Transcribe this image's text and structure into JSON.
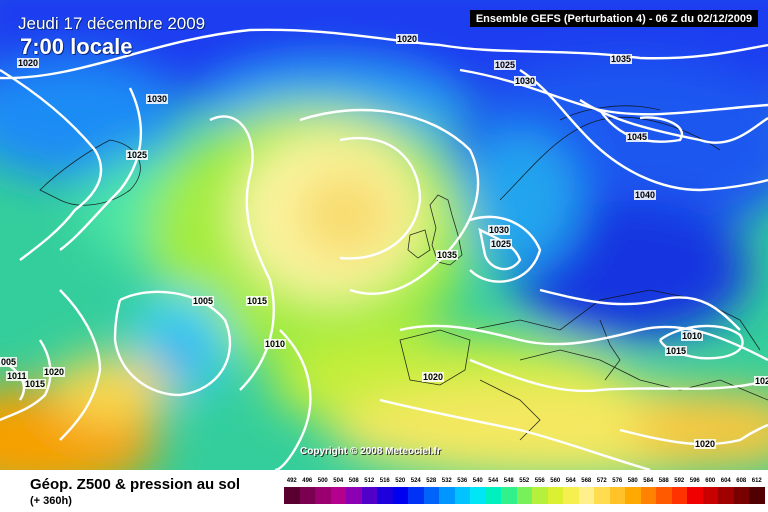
{
  "header": {
    "date": "Jeudi 17 décembre 2009",
    "time": "7:00 locale",
    "model": "Ensemble GEFS (Perturbation 4) - 06 Z du 02/12/2009"
  },
  "copyright": "Copyright © 2008 Meteociel.fr",
  "footer": {
    "title": "Géop. Z500 & pression au sol",
    "subtitle": "(+ 360h)"
  },
  "isobar_labels": [
    "1020",
    "1020",
    "1030",
    "1025",
    "1025",
    "1030",
    "1035",
    "1045",
    "1040",
    "1030",
    "1025",
    "1035",
    "1005",
    "1015",
    "1010",
    "005",
    "1011",
    "1015",
    "1020",
    "1020",
    "1010",
    "1015",
    "1020",
    "102"
  ],
  "scale": {
    "values": [
      "492",
      "496",
      "500",
      "504",
      "508",
      "512",
      "516",
      "520",
      "524",
      "528",
      "532",
      "536",
      "540",
      "544",
      "548",
      "552",
      "556",
      "560",
      "564",
      "568",
      "572",
      "576",
      "580",
      "584",
      "588",
      "592",
      "596",
      "600",
      "604",
      "608",
      "612"
    ],
    "colors": [
      "#5a0030",
      "#7a0050",
      "#9a0070",
      "#b4008c",
      "#8c00b4",
      "#5000c8",
      "#1e00dc",
      "#0000f0",
      "#0032f5",
      "#0064fa",
      "#0096ff",
      "#00c3ff",
      "#00e6f5",
      "#00f0be",
      "#32f08c",
      "#78f05a",
      "#b4f03c",
      "#dcf032",
      "#f5f050",
      "#fff08c",
      "#ffdc50",
      "#ffc328",
      "#ffaa00",
      "#ff8200",
      "#ff5a00",
      "#ff3200",
      "#f00000",
      "#c80000",
      "#a00000",
      "#780000",
      "#500000"
    ]
  }
}
